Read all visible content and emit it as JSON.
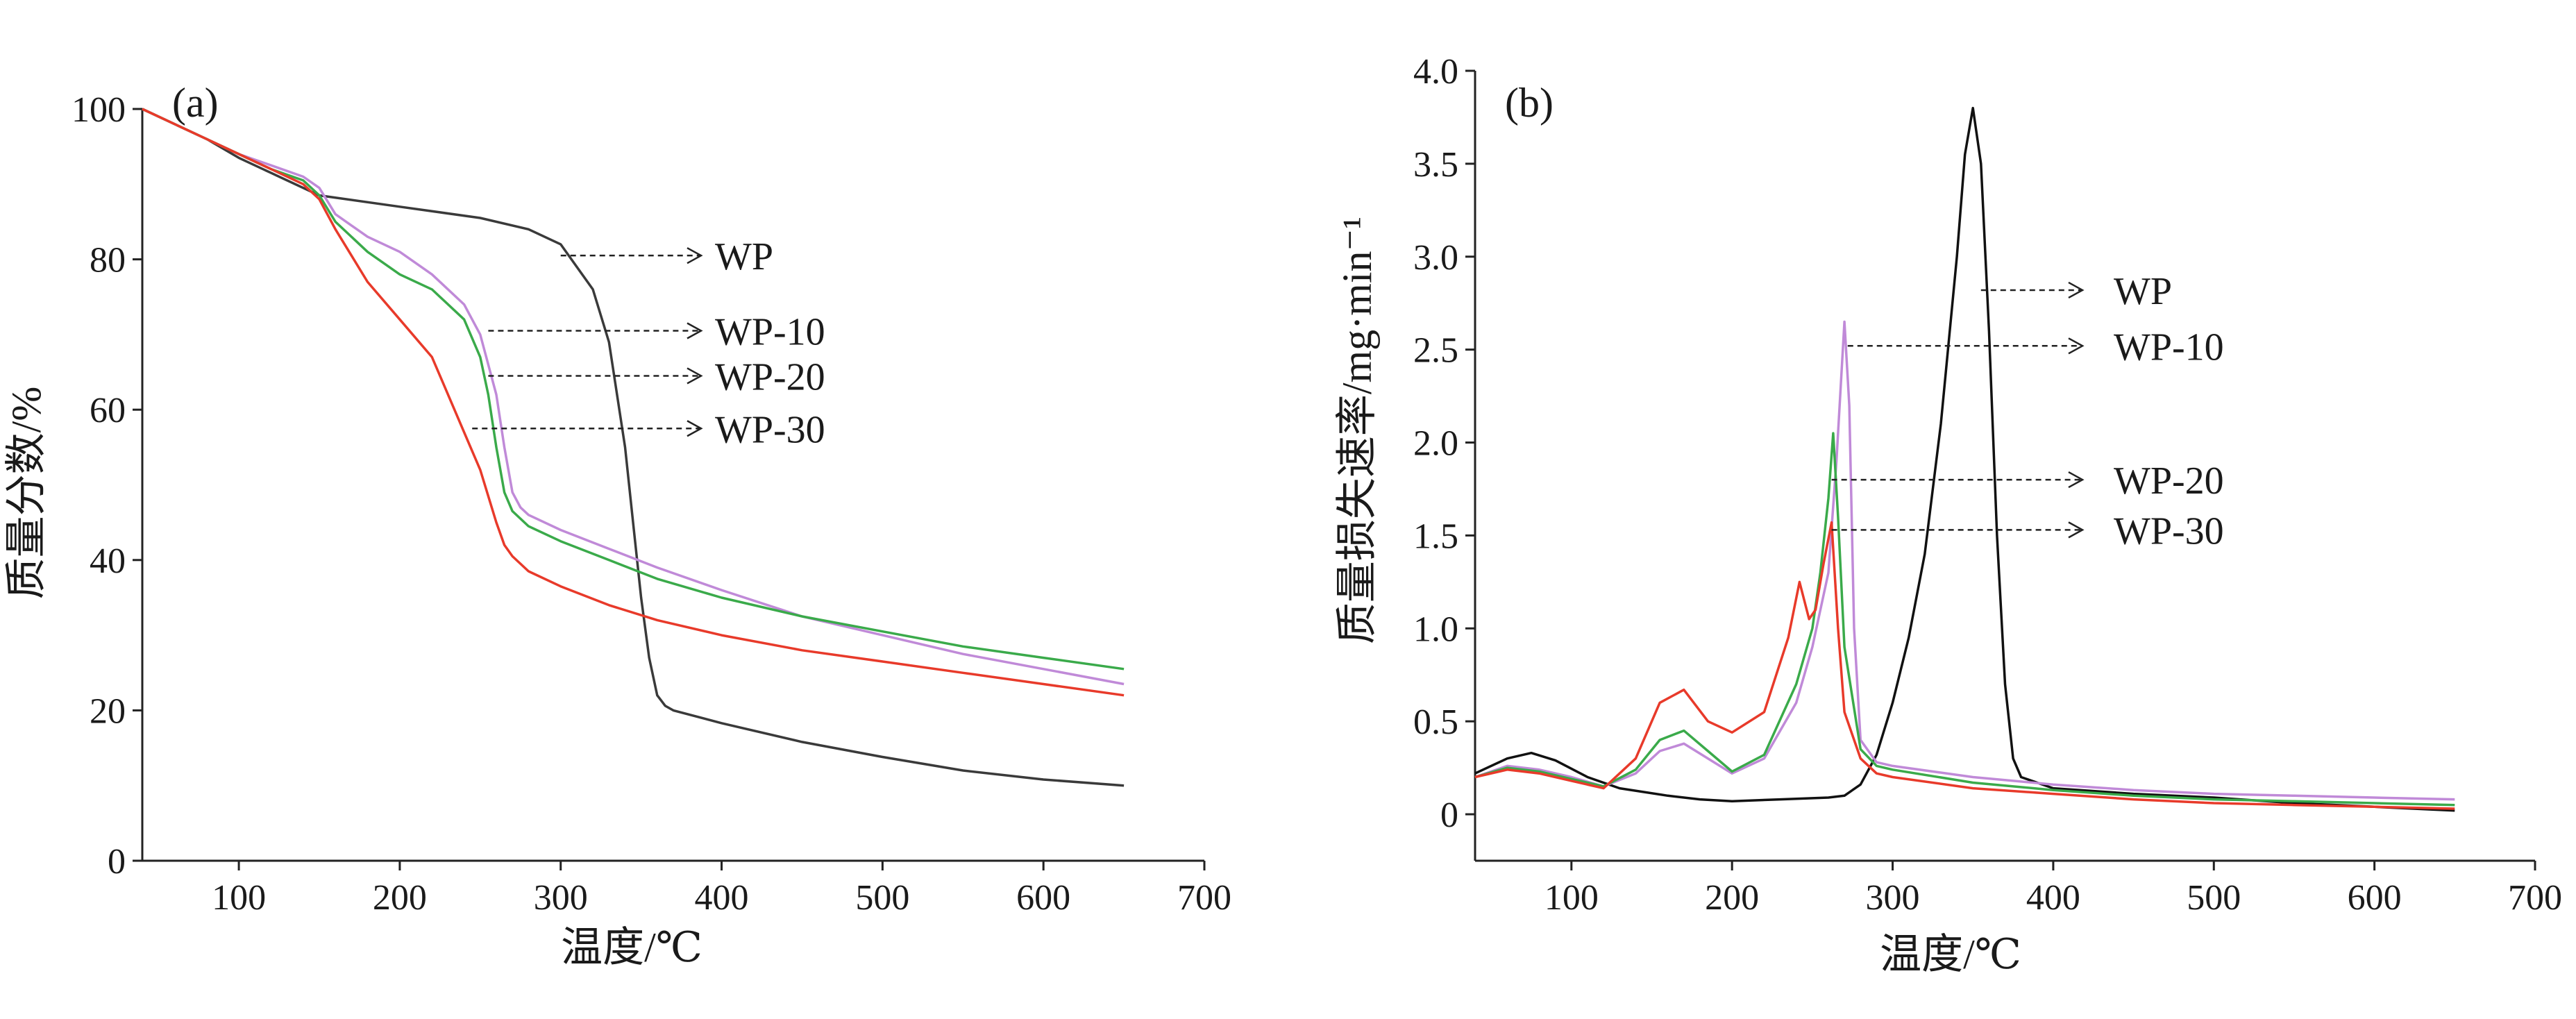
{
  "figure": {
    "panels": [
      "(a)",
      "(b)"
    ]
  },
  "chart_data": [
    {
      "type": "line",
      "panel_label": "(a)",
      "xlabel": "温度/℃",
      "ylabel": "质量分数/%",
      "xlim": [
        40,
        700
      ],
      "ylim": [
        0,
        100
      ],
      "xticks": [
        100,
        200,
        300,
        400,
        500,
        600,
        700
      ],
      "yticks": [
        0,
        20,
        40,
        60,
        80,
        100
      ],
      "grid": false,
      "colors": {
        "WP": "#3a3a3a",
        "WP-10": "#c08ad8",
        "WP-20": "#3aaa4a",
        "WP-30": "#e83a2a"
      },
      "series": [
        {
          "name": "WP",
          "x": [
            40,
            60,
            80,
            100,
            120,
            150,
            200,
            250,
            280,
            300,
            320,
            330,
            340,
            345,
            350,
            355,
            360,
            365,
            370,
            400,
            450,
            500,
            550,
            600,
            650
          ],
          "y": [
            100,
            98,
            96,
            93.5,
            91.5,
            88.5,
            87,
            85.5,
            84,
            82,
            76,
            69,
            55,
            45,
            35,
            27,
            22,
            20.6,
            20,
            18.3,
            15.8,
            13.8,
            12,
            10.8,
            10
          ]
        },
        {
          "name": "WP-10",
          "x": [
            40,
            60,
            80,
            100,
            120,
            140,
            150,
            160,
            180,
            200,
            220,
            240,
            250,
            260,
            265,
            270,
            275,
            280,
            300,
            330,
            360,
            400,
            450,
            500,
            550,
            600,
            650
          ],
          "y": [
            100,
            98,
            96,
            94,
            92.5,
            91,
            89.5,
            86,
            83,
            81,
            78,
            74,
            70,
            62,
            55,
            49,
            47,
            46,
            44,
            41.5,
            39,
            36,
            32.5,
            30,
            27.5,
            25.5,
            23.5
          ]
        },
        {
          "name": "WP-20",
          "x": [
            40,
            60,
            80,
            100,
            120,
            140,
            150,
            160,
            180,
            200,
            220,
            240,
            250,
            255,
            260,
            265,
            270,
            280,
            300,
            330,
            360,
            400,
            450,
            500,
            550,
            600,
            650
          ],
          "y": [
            100,
            98,
            96,
            94,
            92,
            90.5,
            88.5,
            85,
            81,
            78,
            76,
            72,
            67,
            62,
            55,
            49,
            46.5,
            44.5,
            42.5,
            40,
            37.5,
            35,
            32.5,
            30.5,
            28.5,
            27,
            25.5
          ]
        },
        {
          "name": "WP-30",
          "x": [
            40,
            60,
            80,
            100,
            120,
            140,
            150,
            160,
            180,
            200,
            220,
            240,
            250,
            260,
            265,
            270,
            280,
            300,
            330,
            360,
            400,
            450,
            500,
            550,
            600,
            650
          ],
          "y": [
            100,
            98,
            96,
            94,
            92,
            90,
            88,
            84,
            77,
            72,
            67,
            57,
            52,
            45,
            42,
            40.5,
            38.5,
            36.5,
            34,
            32,
            30,
            28,
            26.5,
            25,
            23.5,
            22
          ]
        }
      ],
      "annotations": [
        {
          "text": "WP",
          "series": "WP",
          "x": 300,
          "y": 80.5
        },
        {
          "text": "WP-10",
          "series": "WP-10",
          "x": 255,
          "y": 70.5
        },
        {
          "text": "WP-20",
          "series": "WP-20",
          "x": 255,
          "y": 64.5
        },
        {
          "text": "WP-30",
          "series": "WP-30",
          "x": 245,
          "y": 57.5
        }
      ]
    },
    {
      "type": "line",
      "panel_label": "(b)",
      "xlabel": "温度/℃",
      "ylabel": "质量损失速率/mg·min⁻¹",
      "xlim": [
        40,
        700
      ],
      "ylim": [
        -0.25,
        4.0
      ],
      "xticks": [
        100,
        200,
        300,
        400,
        500,
        600,
        700
      ],
      "yticks": [
        0,
        0.5,
        1.0,
        1.5,
        2.0,
        2.5,
        3.0,
        3.5,
        4.0
      ],
      "ytick_labels": [
        "0",
        "0.5",
        "1.0",
        "1.5",
        "2.0",
        "2.5",
        "3.0",
        "3.5",
        "4.0"
      ],
      "grid": false,
      "colors": {
        "WP": "#111111",
        "WP-10": "#c08ad8",
        "WP-20": "#3aaa4a",
        "WP-30": "#e83a2a"
      },
      "series": [
        {
          "name": "WP",
          "x": [
            40,
            60,
            75,
            90,
            110,
            130,
            160,
            180,
            200,
            230,
            260,
            270,
            280,
            290,
            300,
            310,
            320,
            330,
            340,
            345,
            350,
            355,
            360,
            365,
            370,
            375,
            380,
            400,
            450,
            500,
            550,
            600,
            650
          ],
          "y": [
            0.22,
            0.3,
            0.33,
            0.29,
            0.2,
            0.14,
            0.1,
            0.08,
            0.07,
            0.08,
            0.09,
            0.1,
            0.16,
            0.32,
            0.6,
            0.95,
            1.4,
            2.1,
            3.0,
            3.55,
            3.8,
            3.5,
            2.6,
            1.5,
            0.7,
            0.3,
            0.2,
            0.14,
            0.11,
            0.09,
            0.06,
            0.04,
            0.02
          ]
        },
        {
          "name": "WP-10",
          "x": [
            40,
            60,
            80,
            100,
            120,
            140,
            155,
            170,
            185,
            200,
            220,
            240,
            250,
            260,
            265,
            270,
            273,
            276,
            280,
            290,
            300,
            350,
            400,
            450,
            500,
            550,
            600,
            650
          ],
          "y": [
            0.2,
            0.26,
            0.24,
            0.2,
            0.15,
            0.22,
            0.34,
            0.38,
            0.3,
            0.22,
            0.3,
            0.6,
            0.9,
            1.3,
            1.9,
            2.65,
            2.2,
            1.0,
            0.4,
            0.28,
            0.26,
            0.2,
            0.16,
            0.13,
            0.11,
            0.1,
            0.09,
            0.08
          ]
        },
        {
          "name": "WP-20",
          "x": [
            40,
            60,
            80,
            100,
            120,
            140,
            155,
            170,
            185,
            200,
            220,
            240,
            250,
            255,
            260,
            263,
            266,
            270,
            280,
            290,
            300,
            350,
            400,
            450,
            500,
            550,
            600,
            650
          ],
          "y": [
            0.2,
            0.25,
            0.23,
            0.19,
            0.15,
            0.24,
            0.4,
            0.45,
            0.34,
            0.23,
            0.32,
            0.7,
            1.0,
            1.3,
            1.7,
            2.05,
            1.6,
            0.9,
            0.35,
            0.26,
            0.24,
            0.17,
            0.13,
            0.1,
            0.08,
            0.07,
            0.06,
            0.05
          ]
        },
        {
          "name": "WP-30",
          "x": [
            40,
            60,
            80,
            100,
            120,
            140,
            155,
            170,
            185,
            200,
            220,
            235,
            242,
            248,
            252,
            257,
            262,
            266,
            270,
            280,
            290,
            300,
            350,
            400,
            450,
            500,
            550,
            600,
            650
          ],
          "y": [
            0.2,
            0.24,
            0.22,
            0.18,
            0.14,
            0.3,
            0.6,
            0.67,
            0.5,
            0.44,
            0.55,
            0.95,
            1.25,
            1.05,
            1.1,
            1.35,
            1.57,
            1.0,
            0.55,
            0.3,
            0.22,
            0.2,
            0.14,
            0.11,
            0.08,
            0.06,
            0.05,
            0.04,
            0.03
          ]
        }
      ],
      "annotations": [
        {
          "text": "WP",
          "series": "WP",
          "x": 355,
          "y": 2.82
        },
        {
          "text": "WP-10",
          "series": "WP-10",
          "x": 272,
          "y": 2.52
        },
        {
          "text": "WP-20",
          "series": "WP-20",
          "x": 262,
          "y": 1.8
        },
        {
          "text": "WP-30",
          "series": "WP-30",
          "x": 262,
          "y": 1.53
        }
      ]
    }
  ]
}
